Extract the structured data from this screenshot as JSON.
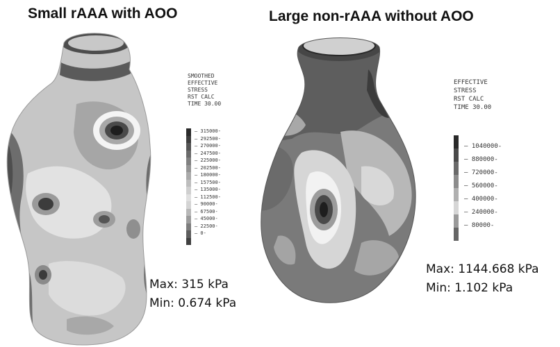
{
  "left": {
    "title": "Small rAAA with AOO",
    "legend_line1": "SMOOTHED",
    "legend_line2": "EFFECTIVE",
    "legend_line3": "STRESS",
    "legend_line4": "RST CALC",
    "legend_line5": "TIME 30.00",
    "ticks": [
      "315000",
      "292500",
      "270000",
      "247500",
      "225000",
      "202500",
      "180000",
      "157500",
      "135000",
      "112500",
      "90000",
      "67500",
      "45000",
      "22500",
      "0"
    ],
    "max": "Max: 315 kPa",
    "min": "Min: 0.674 kPa"
  },
  "right": {
    "title": "Large non-rAAA without AOO",
    "legend_line1": "EFFECTIVE",
    "legend_line2": "STRESS",
    "legend_line3": "RST CALC",
    "legend_line4": "TIME 30.00",
    "ticks": [
      "1040000",
      "880000",
      "720000",
      "560000",
      "400000",
      "240000",
      "80000"
    ],
    "max": "Max: 1144.668  kPa",
    "min": "Min: 1.102 kPa"
  },
  "colors": {
    "scale_left": [
      "#2a2a2a",
      "#3d3d3d",
      "#555555",
      "#6a6a6a",
      "#808080",
      "#959595",
      "#aaaaaa",
      "#bdbdbd",
      "#cfcfcf",
      "#e0e0e0",
      "#d4d4d4",
      "#b8b8b8",
      "#9c9c9c",
      "#7d7d7d",
      "#5e5e5e",
      "#404040"
    ],
    "scale_right": [
      "#2a2a2a",
      "#4a4a4a",
      "#6a6a6a",
      "#8c8c8c",
      "#b0b0b0",
      "#d6d6d6",
      "#9a9a9a",
      "#666666"
    ]
  }
}
